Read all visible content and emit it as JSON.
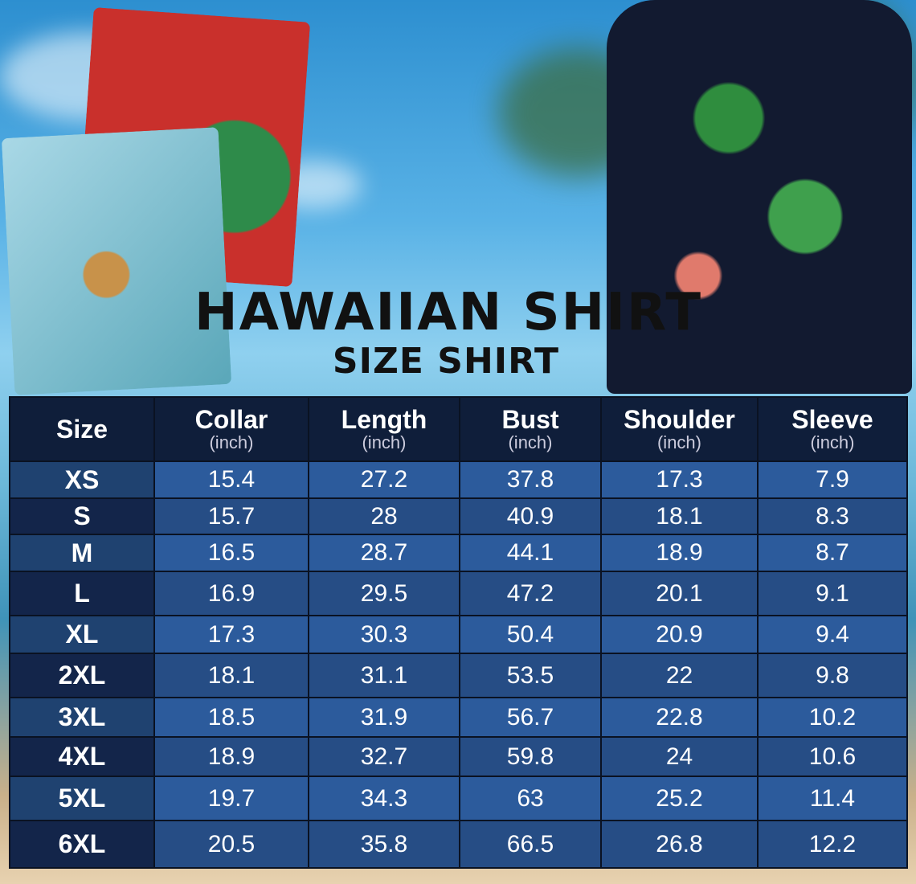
{
  "title": "HAWAIIAN SHIRT",
  "subtitle": "SIZE SHIRT",
  "table": {
    "headers": [
      {
        "label": "Size",
        "unit": ""
      },
      {
        "label": "Collar",
        "unit": "(inch)"
      },
      {
        "label": "Length",
        "unit": "(inch)"
      },
      {
        "label": "Bust",
        "unit": "(inch)"
      },
      {
        "label": "Shoulder",
        "unit": "(inch)"
      },
      {
        "label": "Sleeve",
        "unit": "(inch)"
      }
    ],
    "rows": [
      [
        "XS",
        "15.4",
        "27.2",
        "37.8",
        "17.3",
        "7.9"
      ],
      [
        "S",
        "15.7",
        "28",
        "40.9",
        "18.1",
        "8.3"
      ],
      [
        "M",
        "16.5",
        "28.7",
        "44.1",
        "18.9",
        "8.7"
      ],
      [
        "L",
        "16.9",
        "29.5",
        "47.2",
        "20.1",
        "9.1"
      ],
      [
        "XL",
        "17.3",
        "30.3",
        "50.4",
        "20.9",
        "9.4"
      ],
      [
        "2XL",
        "18.1",
        "31.1",
        "53.5",
        "22",
        "9.8"
      ],
      [
        "3XL",
        "18.5",
        "31.9",
        "56.7",
        "22.8",
        "10.2"
      ],
      [
        "4XL",
        "18.9",
        "32.7",
        "59.8",
        "24",
        "10.6"
      ],
      [
        "5XL",
        "19.7",
        "34.3",
        "63",
        "25.2",
        "11.4"
      ],
      [
        "6XL",
        "20.5",
        "35.8",
        "66.5",
        "26.8",
        "12.2"
      ]
    ]
  },
  "colors": {
    "header": "#0f1e3a",
    "row_light": "#2c5b9c",
    "row_dark": "#264d85"
  }
}
